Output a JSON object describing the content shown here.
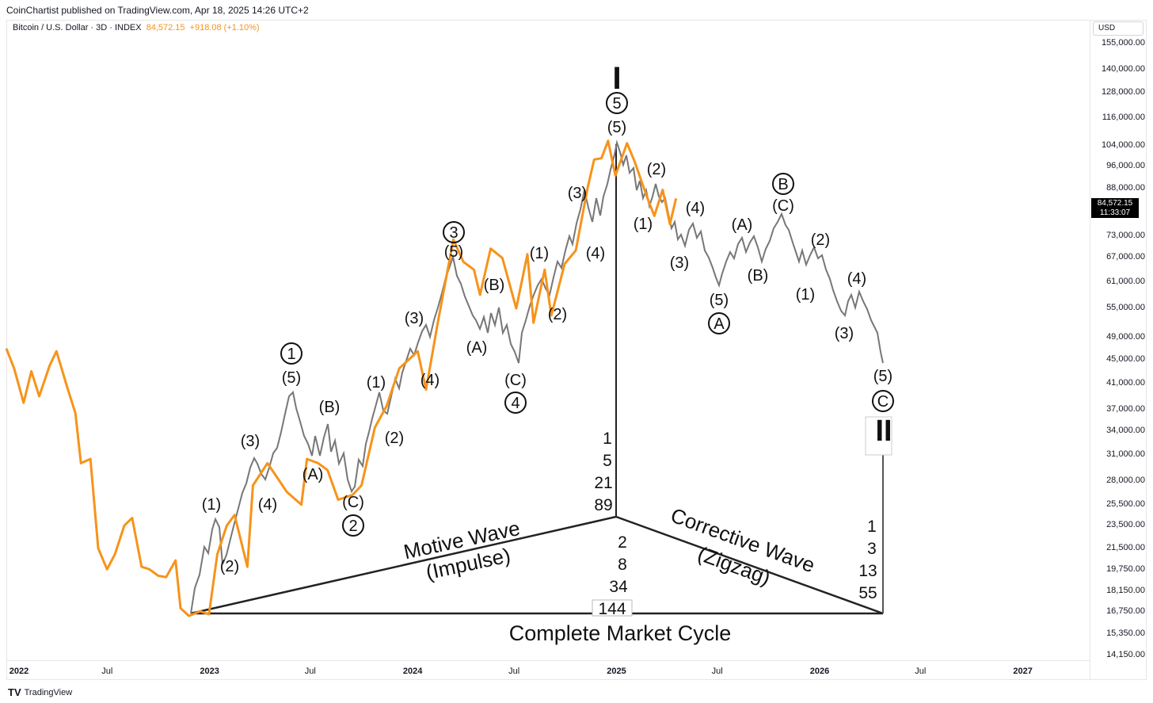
{
  "header": {
    "publisher": "CoinChartist published on TradingView.com, Apr 18, 2025 14:26 UTC+2",
    "symbol": "Bitcoin / U.S. Dollar · 3D · INDEX",
    "price": "84,572.15",
    "change": "+918.08 (+1.10%)"
  },
  "price_axis": {
    "currency": "USD",
    "labels": [
      "155,000.00",
      "140,000.00",
      "128,000.00",
      "116,000.00",
      "104,000.00",
      "96,000.00",
      "88,000.00",
      "73,000.00",
      "67,000.00",
      "61,000.00",
      "55,000.00",
      "49,000.00",
      "45,000.00",
      "41,000.00",
      "37,000.00",
      "34,000.00",
      "31,000.00",
      "28,000.00",
      "25,500.00",
      "23,500.00",
      "21,500.00",
      "19,750.00",
      "18,150.00",
      "16,750.00",
      "15,350.00",
      "14,150.00"
    ],
    "last_price": "84,572.15",
    "countdown": "11:33:07"
  },
  "time_axis": {
    "labels": [
      "2022",
      "Jul",
      "2023",
      "Jul",
      "2024",
      "Jul",
      "2025",
      "Jul",
      "2026",
      "Jul",
      "2027"
    ],
    "years": [
      "2022",
      "2023",
      "2024",
      "2025",
      "2026",
      "2027"
    ]
  },
  "footer": {
    "brand": "TradingView",
    "logo": "TV"
  },
  "diagram": {
    "motive_label": "Motive Wave",
    "motive_sub": "(Impulse)",
    "corrective_label": "Corrective Wave",
    "corrective_sub": "(Zigzag)",
    "cycle_label": "Complete Market Cycle",
    "roman_top": "I",
    "roman_end": "II",
    "fib_center_top": [
      "1",
      "5",
      "21",
      "89"
    ],
    "fib_center_bottom": [
      "2",
      "8",
      "34",
      "144"
    ],
    "fib_right": [
      "1",
      "3",
      "13",
      "55"
    ],
    "wave_labels": {
      "w1_circle": "1",
      "w2_circle": "2",
      "w3_circle": "3",
      "w4_circle": "4",
      "w5_circle": "5",
      "wA_circle": "A",
      "wB_circle": "B",
      "wC_circle": "C",
      "p1": "(1)",
      "p2": "(2)",
      "p3": "(3)",
      "p4": "(4)",
      "p5": "(5)",
      "pA": "(A)",
      "pB": "(B)",
      "pC": "(C)"
    }
  },
  "chart_data": {
    "type": "line",
    "title": "Bitcoin / U.S. Dollar · 3D · INDEX",
    "y_scale": "log",
    "ylim": [
      14000,
      160000
    ],
    "xlim": [
      "2022-01-01",
      "2027-05-01"
    ],
    "series": [
      {
        "name": "Bitcoin / U.S. Dollar",
        "color": "#f7931a",
        "points": [
          [
            "2022-01-01",
            47000
          ],
          [
            "2022-01-15",
            43500
          ],
          [
            "2022-02-01",
            38000
          ],
          [
            "2022-02-15",
            43000
          ],
          [
            "2022-03-01",
            39000
          ],
          [
            "2022-03-20",
            44000
          ],
          [
            "2022-04-01",
            46500
          ],
          [
            "2022-04-20",
            40500
          ],
          [
            "2022-05-05",
            36500
          ],
          [
            "2022-05-15",
            30000
          ],
          [
            "2022-06-01",
            30500
          ],
          [
            "2022-06-15",
            21500
          ],
          [
            "2022-07-01",
            19800
          ],
          [
            "2022-07-15",
            21000
          ],
          [
            "2022-08-01",
            23500
          ],
          [
            "2022-08-15",
            24200
          ],
          [
            "2022-09-01",
            20000
          ],
          [
            "2022-09-15",
            19800
          ],
          [
            "2022-10-01",
            19300
          ],
          [
            "2022-10-15",
            19200
          ],
          [
            "2022-11-01",
            20500
          ],
          [
            "2022-11-10",
            17000
          ],
          [
            "2022-11-25",
            16500
          ],
          [
            "2022-12-15",
            16800
          ],
          [
            "2022-12-31",
            16600
          ],
          [
            "2023-01-15",
            21000
          ],
          [
            "2023-02-01",
            23500
          ],
          [
            "2023-02-15",
            24500
          ],
          [
            "2023-03-10",
            20000
          ],
          [
            "2023-03-20",
            27500
          ],
          [
            "2023-04-15",
            30000
          ],
          [
            "2023-05-01",
            28500
          ],
          [
            "2023-05-20",
            26800
          ],
          [
            "2023-06-15",
            25500
          ],
          [
            "2023-06-25",
            30500
          ],
          [
            "2023-07-15",
            30000
          ],
          [
            "2023-08-01",
            29200
          ],
          [
            "2023-08-20",
            26000
          ],
          [
            "2023-09-15",
            26500
          ],
          [
            "2023-10-01",
            27500
          ],
          [
            "2023-10-25",
            34500
          ],
          [
            "2023-11-15",
            37500
          ],
          [
            "2023-12-08",
            43500
          ],
          [
            "2024-01-10",
            46500
          ],
          [
            "2024-01-25",
            40000
          ],
          [
            "2024-02-15",
            52000
          ],
          [
            "2024-03-14",
            72000
          ],
          [
            "2024-04-01",
            66000
          ],
          [
            "2024-04-20",
            64000
          ],
          [
            "2024-05-01",
            58000
          ],
          [
            "2024-05-20",
            69500
          ],
          [
            "2024-06-10",
            67000
          ],
          [
            "2024-07-05",
            55000
          ],
          [
            "2024-07-25",
            68000
          ],
          [
            "2024-08-05",
            52000
          ],
          [
            "2024-08-25",
            64000
          ],
          [
            "2024-09-06",
            53500
          ],
          [
            "2024-09-30",
            65500
          ],
          [
            "2024-10-20",
            69000
          ],
          [
            "2024-11-10",
            88000
          ],
          [
            "2024-11-22",
            98500
          ],
          [
            "2024-12-05",
            99000
          ],
          [
            "2024-12-17",
            106000
          ],
          [
            "2024-12-30",
            92500
          ],
          [
            "2025-01-20",
            105000
          ],
          [
            "2025-02-03",
            97500
          ],
          [
            "2025-02-25",
            85000
          ],
          [
            "2025-03-10",
            79000
          ],
          [
            "2025-03-25",
            87500
          ],
          [
            "2025-04-07",
            76500
          ],
          [
            "2025-04-18",
            84572
          ]
        ]
      }
    ],
    "annotations": [
      "Motive Wave (Impulse)",
      "Corrective Wave (Zigzag)",
      "Complete Market Cycle"
    ]
  }
}
